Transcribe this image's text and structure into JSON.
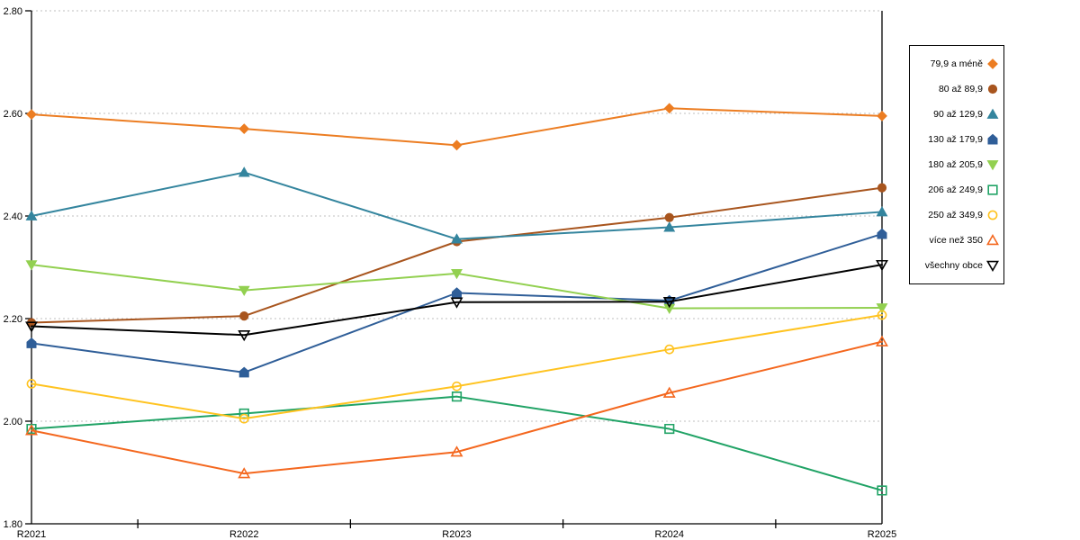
{
  "chart_data": {
    "type": "line",
    "title": "",
    "xlabel": "",
    "ylabel": "",
    "categories": [
      "R2021",
      "R2022",
      "R2023",
      "R2024",
      "R2025"
    ],
    "series": [
      {
        "name": "79,9 a méně",
        "color": "#EC7D22",
        "marker": "diamond",
        "marker_fill": "solid",
        "values": [
          2.598,
          2.57,
          2.538,
          2.61,
          2.595
        ]
      },
      {
        "name": "80 až 89,9",
        "color": "#A8551E",
        "marker": "circle",
        "marker_fill": "solid",
        "values": [
          2.192,
          2.205,
          2.35,
          2.397,
          2.455
        ]
      },
      {
        "name": "90 až 129,9",
        "color": "#34859E",
        "marker": "triangle-up",
        "marker_fill": "solid",
        "values": [
          2.4,
          2.485,
          2.355,
          2.378,
          2.408
        ]
      },
      {
        "name": "130 až 179,9",
        "color": "#2F5E98",
        "marker": "pentagon",
        "marker_fill": "solid",
        "values": [
          2.152,
          2.095,
          2.25,
          2.235,
          2.365
        ]
      },
      {
        "name": "180 až 205,9",
        "color": "#92D050",
        "marker": "triangle-down",
        "marker_fill": "solid",
        "values": [
          2.305,
          2.255,
          2.288,
          2.22,
          2.221
        ]
      },
      {
        "name": "206 až 249,9",
        "color": "#21A366",
        "marker": "square",
        "marker_fill": "open",
        "values": [
          1.985,
          2.015,
          2.048,
          1.985,
          1.865
        ]
      },
      {
        "name": "250 až 349,9",
        "color": "#FFC320",
        "marker": "circle",
        "marker_fill": "open",
        "values": [
          2.073,
          2.005,
          2.068,
          2.14,
          2.207
        ]
      },
      {
        "name": "více než 350",
        "color": "#F4671E",
        "marker": "triangle-up",
        "marker_fill": "open",
        "values": [
          1.982,
          1.898,
          1.94,
          2.055,
          2.155
        ]
      },
      {
        "name": "všechny obce",
        "color": "#000000",
        "marker": "triangle-down",
        "marker_fill": "open",
        "values": [
          2.185,
          2.168,
          2.232,
          2.233,
          2.305
        ]
      }
    ],
    "ylim": [
      1.8,
      2.8
    ],
    "ytick_step": 0.2,
    "ytick_labels": [
      "2.80",
      "2.60",
      "2.40",
      "2.20",
      "2.00",
      "1.80"
    ],
    "grid": "horizontal-dotted",
    "grid_color": "#BFBFBF",
    "axis_color": "#000000",
    "legend_position": "right"
  }
}
